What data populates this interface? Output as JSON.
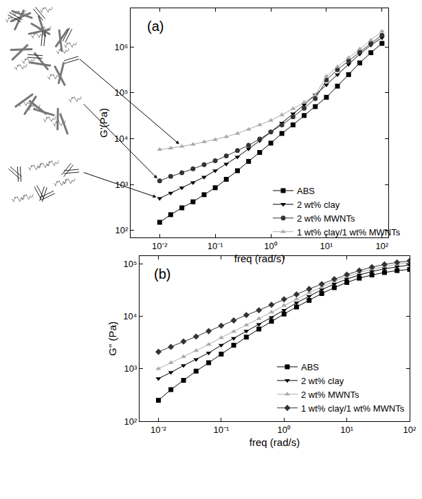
{
  "chart_data": [
    {
      "type": "line",
      "annotations": [
        "(a)"
      ],
      "x_label": "freq (rad/s)",
      "y_label": "G'(Pa)",
      "log": true,
      "grid": false,
      "legend": "lower right",
      "x": [
        0.01,
        0.0158,
        0.0251,
        0.0398,
        0.0631,
        0.1,
        0.158,
        0.251,
        0.398,
        0.631,
        1,
        1.58,
        2.51,
        3.98,
        6.31,
        10,
        15.8,
        25.1,
        39.8,
        63.1,
        100
      ],
      "xlim": [
        0.003,
        130
      ],
      "xticks": [
        {
          "value": 0.01,
          "label": "10⁻²"
        },
        {
          "value": 0.1,
          "label": "10⁻¹"
        },
        {
          "value": 1,
          "label": "10⁰"
        },
        {
          "value": 10,
          "label": "10¹"
        },
        {
          "value": 100,
          "label": "10²"
        }
      ],
      "ylim": [
        70,
        7000000
      ],
      "yticks": [
        {
          "value": 100,
          "label": "10²"
        },
        {
          "value": 1000,
          "label": "10³"
        },
        {
          "value": 10000,
          "label": "10⁴"
        },
        {
          "value": 100000,
          "label": "10⁵"
        },
        {
          "value": 1000000,
          "label": "10⁶"
        }
      ],
      "series": [
        {
          "name": "ABS",
          "color": "#000000",
          "marker": "square",
          "line_style": "solid",
          "values": [
            150,
            220,
            310,
            420,
            600,
            850,
            1300,
            2000,
            3200,
            5000,
            8000,
            13000,
            20000,
            32000,
            50000,
            80000,
            140000,
            250000,
            450000,
            750000,
            1200000
          ]
        },
        {
          "name": "2 wt% clay",
          "color": "#000000",
          "marker": "triangle-down",
          "line_style": "solid",
          "values": [
            500,
            650,
            850,
            1100,
            1450,
            2000,
            2800,
            4000,
            6000,
            9000,
            14000,
            22000,
            35000,
            55000,
            90000,
            150000,
            250000,
            420000,
            700000,
            1100000,
            1600000
          ]
        },
        {
          "name": "2 wt% MWNTs",
          "color": "#333333",
          "marker": "circle",
          "line_style": "solid",
          "values": [
            1200,
            1500,
            1800,
            2200,
            2700,
            3300,
            4200,
            5500,
            7200,
            9800,
            14000,
            20000,
            30000,
            46000,
            75000,
            190000,
            320000,
            500000,
            780000,
            1200000,
            1800000
          ]
        },
        {
          "name": "1 wt% clay/1 wt% MWNTs",
          "color": "#aaaaaa",
          "marker": "triangle-up",
          "line_style": "solid",
          "values": [
            5800,
            6200,
            6800,
            7500,
            8500,
            9500,
            11000,
            13000,
            16000,
            20000,
            25000,
            33000,
            45000,
            62000,
            90000,
            230000,
            370000,
            580000,
            900000,
            1400000,
            2200000
          ]
        }
      ]
    },
    {
      "type": "line",
      "annotations": [
        "(b)"
      ],
      "x_label": "freq (rad/s)",
      "y_label": "G'' (Pa)",
      "log": true,
      "grid": false,
      "legend": "lower right",
      "x": [
        0.01,
        0.0158,
        0.0251,
        0.0398,
        0.0631,
        0.1,
        0.158,
        0.251,
        0.398,
        0.631,
        1,
        1.58,
        2.51,
        3.98,
        6.31,
        10,
        15.8,
        25.1,
        39.8,
        63.1,
        100
      ],
      "xlim": [
        0.005,
        100
      ],
      "xticks": [
        {
          "value": 0.01,
          "label": "10⁻²"
        },
        {
          "value": 0.1,
          "label": "10⁻¹"
        },
        {
          "value": 1,
          "label": "10⁰"
        },
        {
          "value": 10,
          "label": "10¹"
        },
        {
          "value": 100,
          "label": "10²"
        }
      ],
      "ylim": [
        100,
        140000
      ],
      "yticks": [
        {
          "value": 100,
          "label": "10²"
        },
        {
          "value": 1000,
          "label": "10³"
        },
        {
          "value": 10000,
          "label": "10⁴"
        },
        {
          "value": 100000,
          "label": "10⁵"
        }
      ],
      "series": [
        {
          "name": "ABS",
          "color": "#000000",
          "marker": "square",
          "line_style": "solid",
          "values": [
            250,
            400,
            600,
            900,
            1300,
            1900,
            2800,
            4000,
            5700,
            8000,
            11000,
            15000,
            20000,
            27000,
            35000,
            44000,
            53000,
            61000,
            68000,
            74000,
            78000
          ]
        },
        {
          "name": "2 wt% clay",
          "color": "#000000",
          "marker": "triangle-down",
          "line_style": "solid",
          "values": [
            650,
            850,
            1150,
            1500,
            2000,
            2800,
            3800,
            5200,
            7000,
            9500,
            13000,
            18000,
            24000,
            32000,
            41000,
            51000,
            61000,
            71000,
            80000,
            88000,
            95000
          ]
        },
        {
          "name": "2 wt% MWNTs",
          "color": "#aaaaaa",
          "marker": "triangle-up",
          "line_style": "solid",
          "values": [
            1000,
            1300,
            1700,
            2200,
            2900,
            3900,
            5100,
            6800,
            9000,
            12000,
            16000,
            21000,
            28000,
            36000,
            46000,
            57000,
            68000,
            79000,
            89000,
            98000,
            105000
          ]
        },
        {
          "name": "1 wt% clay/1 wt% MWNTs",
          "color": "#333333",
          "marker": "diamond",
          "line_style": "solid",
          "values": [
            2100,
            2600,
            3300,
            4100,
            5200,
            6600,
            8300,
            10500,
            13000,
            16500,
            21000,
            26000,
            33000,
            41000,
            51000,
            62000,
            74000,
            86000,
            97000,
            106000,
            113000
          ]
        }
      ]
    }
  ]
}
